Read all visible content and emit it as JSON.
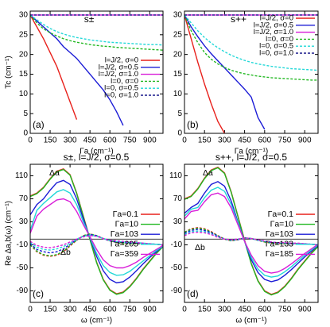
{
  "chart_data": [
    {
      "type": "line",
      "label": "(a)",
      "title": "s±",
      "xlabel": "Γa (cm⁻¹)",
      "ylabel": "Tc (cm⁻¹)",
      "legend": "center right",
      "xlim": [
        0,
        1000
      ],
      "ylim": [
        0,
        31
      ],
      "xticks": [
        0,
        150,
        300,
        450,
        600,
        750,
        900
      ],
      "yticks": [
        0,
        5,
        10,
        15,
        20,
        25,
        30
      ],
      "x": [
        0,
        50,
        100,
        150,
        200,
        250,
        300,
        350,
        400,
        450,
        500,
        550,
        600,
        650,
        700,
        750,
        800,
        850,
        900,
        950,
        1000
      ],
      "series": [
        {
          "name": "l=J/2, σ=0",
          "color": "#e8211c",
          "values": [
            30,
            27,
            24,
            20.5,
            17,
            12.5,
            8,
            3.5,
            null,
            null,
            null,
            null,
            null,
            null,
            null,
            null,
            null,
            null,
            null,
            null,
            null
          ]
        },
        {
          "name": "l=J/2, σ=0.5",
          "color": "#1c1cd6",
          "values": [
            30,
            28.5,
            27,
            25.5,
            24,
            22,
            20.5,
            19,
            17,
            15,
            13,
            11,
            8.5,
            5.5,
            2,
            null,
            null,
            null,
            null,
            null,
            null
          ]
        },
        {
          "name": "l=J/2, σ=1.0",
          "color": "#d81ed8",
          "values": [
            30,
            30,
            30,
            30,
            30,
            30,
            30,
            30,
            30,
            30,
            30,
            30,
            30,
            30,
            30,
            30,
            30,
            30,
            30,
            30,
            30
          ]
        },
        {
          "name": "l=0, σ=0",
          "color": "#22b822",
          "dashed": true,
          "values": [
            30,
            28,
            26.5,
            25.5,
            24.7,
            24,
            23.5,
            23.1,
            22.8,
            22.5,
            22.3,
            22.1,
            22,
            21.8,
            21.7,
            21.6,
            21.5,
            21.4,
            21.3,
            21.2,
            21.1
          ]
        },
        {
          "name": "l=0, σ=0.5",
          "color": "#22d8d8",
          "dashed": true,
          "values": [
            30,
            28.8,
            27.6,
            26.6,
            25.8,
            25.2,
            24.7,
            24.3,
            24,
            23.7,
            23.5,
            23.3,
            23.1,
            23,
            22.9,
            22.8,
            22.7,
            22.6,
            22.5,
            22.5,
            22.4
          ]
        },
        {
          "name": "l=0, σ=1.0",
          "color": "#1a1a8c",
          "dashed": true,
          "values": [
            30,
            30,
            30,
            30,
            30,
            30,
            30,
            30,
            30,
            30,
            30,
            30,
            30,
            30,
            30,
            30,
            30,
            30,
            30,
            30,
            30
          ]
        }
      ]
    },
    {
      "type": "line",
      "label": "(b)",
      "title": "s++",
      "xlabel": "Γa (cm⁻¹)",
      "legend": "upper right",
      "xlim": [
        0,
        1000
      ],
      "ylim": [
        0,
        31
      ],
      "xticks": [
        0,
        150,
        300,
        450,
        600,
        750,
        900
      ],
      "yticks": [
        0,
        5,
        10,
        15,
        20,
        25,
        30
      ],
      "x": [
        0,
        50,
        100,
        150,
        200,
        250,
        300,
        350,
        400,
        450,
        500,
        550,
        600,
        650,
        700,
        750,
        800,
        850,
        900,
        950,
        1000
      ],
      "series": [
        {
          "name": "l=J/2, σ=0",
          "color": "#e8211c",
          "values": [
            30,
            24,
            18,
            12.5,
            7.5,
            3,
            0,
            null,
            null,
            null,
            null,
            null,
            null,
            null,
            null,
            null,
            null,
            null,
            null,
            null,
            null
          ]
        },
        {
          "name": "l=J/2, σ=0.5",
          "color": "#1c1cd6",
          "values": [
            30,
            27,
            24.5,
            22.2,
            20.2,
            18.4,
            16.6,
            14.8,
            13,
            11.2,
            9.2,
            4,
            1,
            null,
            null,
            null,
            null,
            null,
            null,
            null,
            null
          ]
        },
        {
          "name": "l=J/2, σ=1.0",
          "color": "#d81ed8",
          "values": [
            30,
            30,
            30,
            30,
            30,
            30,
            30,
            30,
            30,
            30,
            30,
            30,
            30,
            30,
            30,
            30,
            30,
            30,
            30,
            30,
            30
          ]
        },
        {
          "name": "l=0, σ=0",
          "color": "#22b822",
          "dashed": true,
          "values": [
            30,
            26,
            23,
            20.5,
            18.8,
            17.6,
            16.7,
            16,
            15.5,
            15.1,
            14.8,
            14.5,
            14.3,
            14.1,
            14,
            13.9,
            13.8,
            13.7,
            13.6,
            13.5,
            13.5
          ]
        },
        {
          "name": "l=0, σ=0.5",
          "color": "#22d8d8",
          "dashed": true,
          "values": [
            30,
            28,
            26,
            24.3,
            22.9,
            21.7,
            20.7,
            19.8,
            19.1,
            18.5,
            18,
            17.6,
            17.3,
            17,
            16.8,
            16.6,
            16.4,
            16.3,
            16.2,
            16.1,
            16
          ]
        },
        {
          "name": "l=0, σ=1.0",
          "color": "#1a1a8c",
          "dashed": true,
          "values": [
            30,
            30,
            30,
            30,
            30,
            30,
            30,
            30,
            30,
            30,
            30,
            30,
            30,
            30,
            30,
            30,
            30,
            30,
            30,
            30,
            30
          ]
        }
      ]
    },
    {
      "type": "line",
      "label": "(c)",
      "title": "s±, l=J/2, σ=0.5",
      "xlabel": "ω (cm⁻¹)",
      "ylabel": "Re Δa,b(ω) (cm⁻¹)",
      "legend": "center right",
      "annotations": [
        "Δa",
        "Δb"
      ],
      "xlim": [
        0,
        1000
      ],
      "ylim": [
        -110,
        130
      ],
      "xticks": [
        0,
        150,
        300,
        450,
        600,
        750,
        900
      ],
      "yticks": [
        -90,
        -50,
        -10,
        30,
        70,
        110
      ],
      "x": [
        0,
        50,
        100,
        150,
        200,
        250,
        300,
        350,
        400,
        450,
        500,
        550,
        600,
        650,
        700,
        750,
        800,
        850,
        900,
        950,
        1000
      ],
      "series": [
        {
          "name": "Γa=0.1",
          "color": "#e8211c",
          "values": [
            75,
            80,
            90,
            105,
            118,
            122,
            112,
            80,
            40,
            0,
            -40,
            -70,
            -88,
            -95,
            -92,
            -82,
            -68,
            -52,
            -38,
            -24,
            -12
          ]
        },
        {
          "name": "Γa=10",
          "color": "#22b822",
          "values": [
            74,
            79,
            89,
            104,
            117,
            121,
            111,
            79,
            39,
            -1,
            -41,
            -71,
            -89,
            -96,
            -93,
            -83,
            -69,
            -53,
            -39,
            -25,
            -13
          ]
        },
        {
          "name": "Γa=103",
          "color": "#1c1cd6",
          "values": [
            42,
            60,
            70,
            85,
            98,
            102,
            95,
            70,
            35,
            2,
            -30,
            -55,
            -70,
            -76,
            -74,
            -66,
            -55,
            -43,
            -32,
            -22,
            -12
          ]
        },
        {
          "name": "Γa=205",
          "color": "#22d8d8",
          "values": [
            15,
            50,
            62,
            72,
            82,
            86,
            80,
            60,
            30,
            3,
            -25,
            -46,
            -58,
            -63,
            -62,
            -56,
            -47,
            -38,
            -29,
            -20,
            -12
          ]
        },
        {
          "name": "Γa=359",
          "color": "#d81ed8",
          "values": [
            10,
            40,
            52,
            60,
            68,
            70,
            65,
            48,
            25,
            4,
            -18,
            -36,
            -46,
            -50,
            -50,
            -46,
            -40,
            -32,
            -25,
            -18,
            -11
          ]
        },
        {
          "color": "#e8211c",
          "dashed": true,
          "values": [
            -10,
            -22,
            -28,
            -30,
            -28,
            -22,
            -12,
            -2,
            6,
            9,
            6,
            1,
            -3,
            -6,
            -8,
            -8,
            -8,
            -8,
            -9,
            -9,
            -10
          ]
        },
        {
          "color": "#22b822",
          "dashed": true,
          "values": [
            -10,
            -21,
            -27,
            -29,
            -27,
            -21,
            -11,
            -2,
            6,
            9,
            6,
            1,
            -3,
            -6,
            -8,
            -8,
            -8,
            -8,
            -9,
            -9,
            -10
          ]
        },
        {
          "color": "#1c1cd6",
          "dashed": true,
          "values": [
            -8,
            -18,
            -22,
            -24,
            -22,
            -17,
            -9,
            -1,
            5,
            8,
            6,
            1,
            -3,
            -5,
            -6,
            -7,
            -7,
            -8,
            -8,
            -9,
            -10
          ]
        },
        {
          "color": "#22d8d8",
          "dashed": true,
          "values": [
            -6,
            -14,
            -18,
            -19,
            -17,
            -13,
            -7,
            0,
            5,
            7,
            5,
            1,
            -2,
            -4,
            -5,
            -6,
            -6,
            -7,
            -8,
            -9,
            -10
          ]
        },
        {
          "color": "#d81ed8",
          "dashed": true,
          "values": [
            -4,
            -11,
            -14,
            -15,
            -13,
            -10,
            -5,
            0,
            4,
            6,
            5,
            1,
            -2,
            -3,
            -4,
            -5,
            -6,
            -7,
            -8,
            -9,
            -10
          ]
        }
      ]
    },
    {
      "type": "line",
      "label": "(d)",
      "title": "s++, l=J/2, σ=0.5",
      "xlabel": "ω (cm⁻¹)",
      "legend": "center right",
      "annotations": [
        "Δa",
        "Δb"
      ],
      "xlim": [
        0,
        1000
      ],
      "ylim": [
        -110,
        130
      ],
      "xticks": [
        0,
        150,
        300,
        450,
        600,
        750,
        900
      ],
      "yticks": [
        -90,
        -50,
        -10,
        30,
        70,
        110
      ],
      "x": [
        0,
        50,
        100,
        150,
        200,
        250,
        300,
        350,
        400,
        450,
        500,
        550,
        600,
        650,
        700,
        750,
        800,
        850,
        900,
        950,
        1000
      ],
      "series": [
        {
          "name": "Γa=0.1",
          "color": "#e8211c",
          "values": [
            70,
            75,
            88,
            106,
            120,
            125,
            115,
            82,
            40,
            -2,
            -42,
            -72,
            -90,
            -96,
            -92,
            -82,
            -68,
            -52,
            -38,
            -24,
            -12
          ]
        },
        {
          "name": "Γa=10",
          "color": "#22b822",
          "values": [
            69,
            74,
            87,
            105,
            119,
            124,
            114,
            81,
            39,
            -3,
            -43,
            -73,
            -91,
            -97,
            -93,
            -83,
            -69,
            -53,
            -39,
            -25,
            -13
          ]
        },
        {
          "name": "Γa=103",
          "color": "#1c1cd6",
          "values": [
            45,
            55,
            62,
            80,
            95,
            100,
            92,
            66,
            30,
            -4,
            -36,
            -58,
            -70,
            -74,
            -71,
            -63,
            -53,
            -42,
            -31,
            -21,
            -11
          ]
        },
        {
          "name": "Γa=133",
          "color": "#22d8d8",
          "values": [
            40,
            52,
            55,
            72,
            85,
            90,
            83,
            60,
            28,
            -4,
            -32,
            -52,
            -63,
            -66,
            -64,
            -57,
            -48,
            -38,
            -28,
            -19,
            -10
          ]
        },
        {
          "name": "Γa=185",
          "color": "#d81ed8",
          "values": [
            35,
            48,
            50,
            65,
            77,
            80,
            74,
            54,
            25,
            -4,
            -28,
            -46,
            -56,
            -59,
            -57,
            -51,
            -43,
            -34,
            -25,
            -17,
            -9
          ]
        },
        {
          "color": "#e8211c",
          "dashed": true,
          "values": [
            12,
            18,
            20,
            18,
            13,
            6,
            0,
            -3,
            -1,
            2,
            1,
            -2,
            -5,
            -7,
            -8,
            -8,
            -8,
            -8,
            -9,
            -9,
            -10
          ]
        },
        {
          "color": "#22b822",
          "dashed": true,
          "values": [
            12,
            17,
            19,
            17,
            12,
            6,
            0,
            -3,
            -1,
            2,
            1,
            -2,
            -5,
            -7,
            -8,
            -8,
            -8,
            -8,
            -9,
            -9,
            -10
          ]
        },
        {
          "color": "#1c1cd6",
          "dashed": true,
          "values": [
            10,
            15,
            17,
            15,
            11,
            5,
            0,
            -2,
            -1,
            2,
            1,
            -2,
            -4,
            -6,
            -7,
            -7,
            -8,
            -8,
            -8,
            -9,
            -10
          ]
        },
        {
          "color": "#22d8d8",
          "dashed": true,
          "values": [
            8,
            13,
            14,
            13,
            9,
            4,
            0,
            -2,
            0,
            2,
            1,
            -2,
            -4,
            -5,
            -6,
            -7,
            -7,
            -8,
            -8,
            -9,
            -10
          ]
        },
        {
          "color": "#d81ed8",
          "dashed": true,
          "values": [
            6,
            11,
            12,
            11,
            8,
            3,
            0,
            -1,
            0,
            2,
            1,
            -1,
            -3,
            -5,
            -6,
            -6,
            -7,
            -7,
            -8,
            -9,
            -10
          ]
        }
      ]
    }
  ]
}
